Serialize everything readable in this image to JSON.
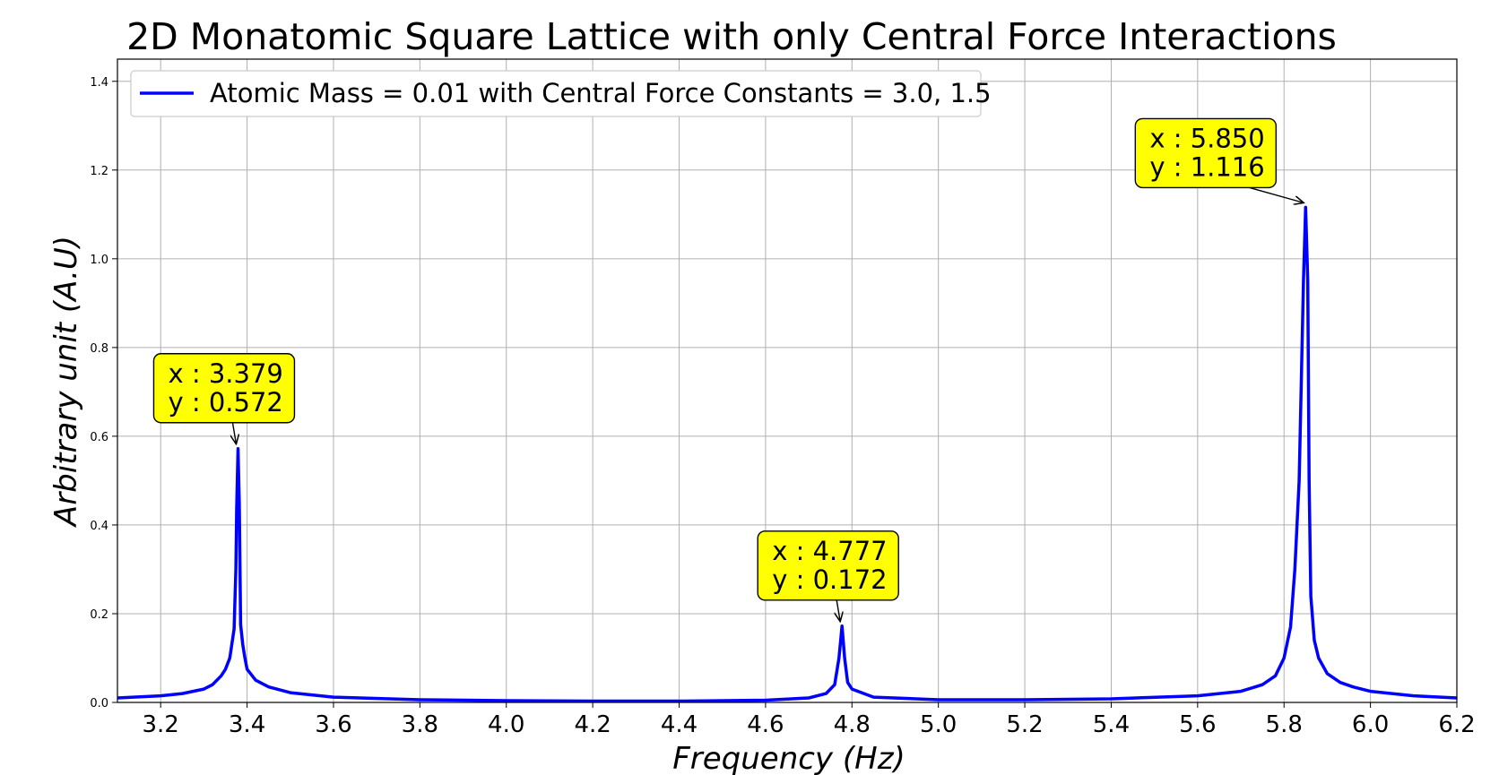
{
  "chart_data": {
    "type": "line",
    "title": "2D Monatomic Square Lattice with only Central Force Interactions",
    "xlabel": "Frequency (Hz)",
    "ylabel": "Arbitrary unit (A.U)",
    "xlim": [
      3.1,
      6.2
    ],
    "ylim": [
      0.0,
      1.45
    ],
    "grid": true,
    "legend_position": "top-left",
    "x_ticks": [
      "3.2",
      "3.4",
      "3.6",
      "3.8",
      "4.0",
      "4.2",
      "4.4",
      "4.6",
      "4.8",
      "5.0",
      "5.2",
      "5.4",
      "5.6",
      "5.8",
      "6.0",
      "6.2"
    ],
    "y_ticks": [
      "0.0",
      "0.2",
      "0.4",
      "0.6",
      "0.8",
      "1.0",
      "1.2",
      "1.4"
    ],
    "series": [
      {
        "name": "Atomic Mass = 0.01 with Central Force Constants = 3.0, 1.5",
        "color": "#0000ff",
        "points": [
          [
            3.1,
            0.01
          ],
          [
            3.2,
            0.015
          ],
          [
            3.25,
            0.02
          ],
          [
            3.3,
            0.03
          ],
          [
            3.32,
            0.04
          ],
          [
            3.34,
            0.06
          ],
          [
            3.35,
            0.075
          ],
          [
            3.36,
            0.1
          ],
          [
            3.37,
            0.165
          ],
          [
            3.374,
            0.3
          ],
          [
            3.376,
            0.44
          ],
          [
            3.379,
            0.572
          ],
          [
            3.382,
            0.45
          ],
          [
            3.385,
            0.175
          ],
          [
            3.39,
            0.13
          ],
          [
            3.395,
            0.1
          ],
          [
            3.4,
            0.075
          ],
          [
            3.42,
            0.05
          ],
          [
            3.45,
            0.035
          ],
          [
            3.5,
            0.022
          ],
          [
            3.6,
            0.012
          ],
          [
            3.8,
            0.006
          ],
          [
            4.0,
            0.004
          ],
          [
            4.2,
            0.003
          ],
          [
            4.4,
            0.003
          ],
          [
            4.6,
            0.005
          ],
          [
            4.7,
            0.01
          ],
          [
            4.74,
            0.02
          ],
          [
            4.76,
            0.04
          ],
          [
            4.77,
            0.1
          ],
          [
            4.777,
            0.172
          ],
          [
            4.783,
            0.1
          ],
          [
            4.79,
            0.045
          ],
          [
            4.8,
            0.03
          ],
          [
            4.85,
            0.012
          ],
          [
            5.0,
            0.006
          ],
          [
            5.2,
            0.006
          ],
          [
            5.4,
            0.008
          ],
          [
            5.6,
            0.015
          ],
          [
            5.7,
            0.025
          ],
          [
            5.75,
            0.04
          ],
          [
            5.78,
            0.06
          ],
          [
            5.8,
            0.1
          ],
          [
            5.815,
            0.17
          ],
          [
            5.825,
            0.3
          ],
          [
            5.835,
            0.5
          ],
          [
            5.845,
            0.95
          ],
          [
            5.85,
            1.116
          ],
          [
            5.855,
            0.95
          ],
          [
            5.858,
            0.5
          ],
          [
            5.862,
            0.24
          ],
          [
            5.87,
            0.14
          ],
          [
            5.88,
            0.1
          ],
          [
            5.9,
            0.065
          ],
          [
            5.93,
            0.045
          ],
          [
            5.96,
            0.035
          ],
          [
            6.0,
            0.025
          ],
          [
            6.1,
            0.015
          ],
          [
            6.2,
            0.01
          ]
        ]
      }
    ],
    "annotations": [
      {
        "x_label": "x : 3.379",
        "y_label": "y : 0.572",
        "x": 3.379,
        "y": 0.572,
        "box_color": "#ffff00"
      },
      {
        "x_label": "x : 4.777",
        "y_label": "y : 0.172",
        "x": 4.777,
        "y": 0.172,
        "box_color": "#ffff00"
      },
      {
        "x_label": "x : 5.850",
        "y_label": "y : 1.116",
        "x": 5.85,
        "y": 1.116,
        "box_color": "#ffff00"
      }
    ]
  }
}
